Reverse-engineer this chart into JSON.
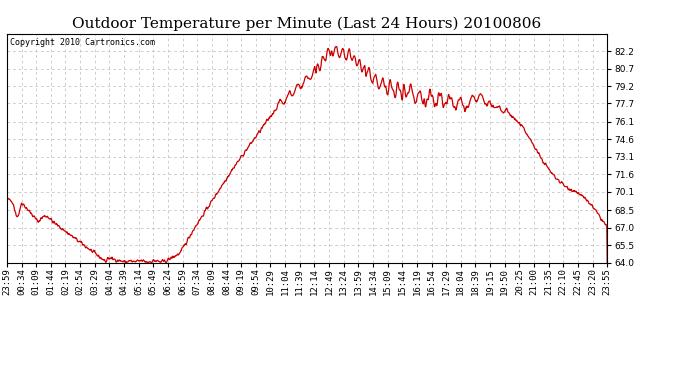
{
  "title": "Outdoor Temperature per Minute (Last 24 Hours) 20100806",
  "copyright": "Copyright 2010 Cartronics.com",
  "line_color": "#cc0000",
  "bg_color": "#ffffff",
  "plot_bg_color": "#ffffff",
  "grid_color": "#bbbbbb",
  "ylim": [
    64.0,
    83.7
  ],
  "yticks": [
    64.0,
    65.5,
    67.0,
    68.5,
    70.1,
    71.6,
    73.1,
    74.6,
    76.1,
    77.7,
    79.2,
    80.7,
    82.2
  ],
  "xtick_labels": [
    "23:59",
    "00:34",
    "01:09",
    "01:44",
    "02:19",
    "02:54",
    "03:29",
    "04:04",
    "04:39",
    "05:14",
    "05:49",
    "06:24",
    "06:59",
    "07:34",
    "08:09",
    "08:44",
    "09:19",
    "09:54",
    "10:29",
    "11:04",
    "11:39",
    "12:14",
    "12:49",
    "13:24",
    "13:59",
    "14:34",
    "15:09",
    "15:44",
    "16:19",
    "16:54",
    "17:29",
    "18:04",
    "18:39",
    "19:15",
    "19:50",
    "20:25",
    "21:00",
    "21:35",
    "22:10",
    "22:45",
    "23:20",
    "23:55"
  ],
  "title_fontsize": 11,
  "copyright_fontsize": 6,
  "tick_fontsize": 6.5,
  "line_width": 0.9
}
